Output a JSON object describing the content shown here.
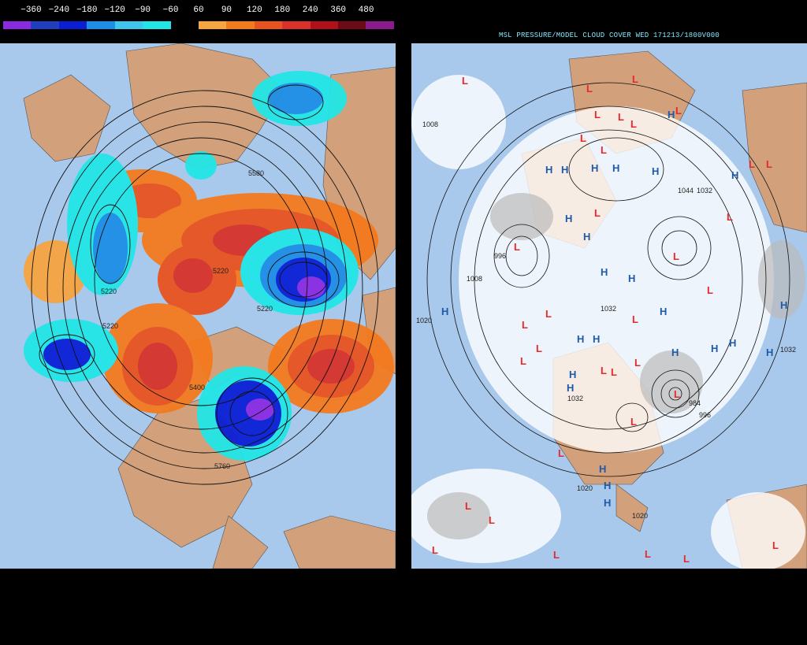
{
  "colorbar": {
    "labels": [
      "−360",
      "−240",
      "−180",
      "−120",
      "−90",
      "−60",
      "60",
      "90",
      "120",
      "180",
      "240",
      "360",
      "480"
    ],
    "colors": [
      "#8a2be2",
      "#1f3fbf",
      "#0a1fd4",
      "#1e8fe6",
      "#3ec6ee",
      "#22e6e6",
      "#000000",
      "#f7a541",
      "#f47a1e",
      "#e8531f",
      "#d8322a",
      "#b0101a",
      "#6e0a16",
      "#8b1a8b"
    ]
  },
  "left_map": {
    "contour_labels": [
      "5580",
      "5220",
      "5220",
      "5220",
      "5220",
      "5760",
      "5400"
    ]
  },
  "right_map": {
    "title": "MSL PRESSURE/MODEL CLOUD COVER WED 171213/1800V000",
    "isobar_labels": [
      "1008",
      "1020",
      "1008",
      "996",
      "1044",
      "1032",
      "1032",
      "1020",
      "1020",
      "984",
      "996",
      "1032",
      "1032"
    ],
    "high_marker": "H",
    "low_marker": "L"
  },
  "colors": {
    "ocean": "#a8c8ec",
    "land": "#d2a07a",
    "high_blue": "#1f5aa8",
    "low_red": "#e8282a"
  }
}
